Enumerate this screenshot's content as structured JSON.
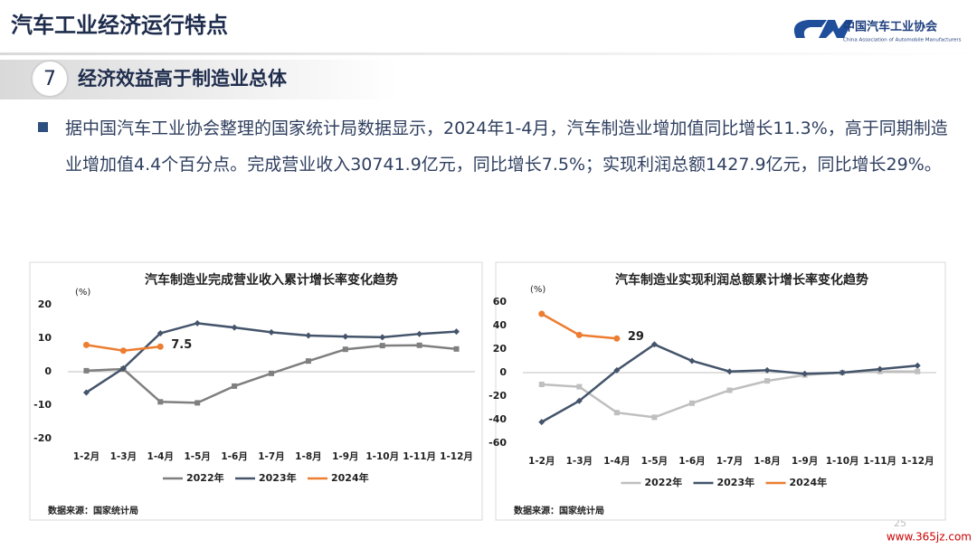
{
  "header": {
    "title": "汽车工业经济运行特点",
    "logo_name": "中国汽车工业协会",
    "logo_subtitle": "China Association of Automobile Manufacturers"
  },
  "section": {
    "number": "7",
    "title": "经济效益高于制造业总体"
  },
  "paragraph": "据中国汽车工业协会整理的国家统计局数据显示，2024年1-4月，汽车制造业增加值同比增长11.3%，高于同期制造业增加值4.4个百分点。完成营业收入30741.9亿元，同比增长7.5%；实现利润总额1427.9亿元，同比增长29%。",
  "chart_data": [
    {
      "type": "line",
      "title": "汽车制造业完成营业收入累计增长率变化趋势",
      "y_unit": "(%)",
      "source": "数据来源：国家统计局",
      "categories": [
        "1-2月",
        "1-3月",
        "1-4月",
        "1-5月",
        "1-6月",
        "1-7月",
        "1-8月",
        "1-9月",
        "1-10月",
        "1-11月",
        "1-12月"
      ],
      "ylim": [
        -20,
        20
      ],
      "yticks": [
        -20,
        -10,
        0,
        10,
        20
      ],
      "legend": "bottom",
      "series": [
        {
          "name": "2022年",
          "color": "#7f7f7f",
          "values": [
            0.3,
            0.8,
            -9,
            -9.3,
            -4.3,
            -0.5,
            3.2,
            6.7,
            7.8,
            7.9,
            6.8
          ]
        },
        {
          "name": "2023年",
          "color": "#44546a",
          "values": [
            -6.2,
            1.0,
            11.5,
            14.5,
            13.2,
            11.8,
            10.8,
            10.5,
            10.3,
            11.3,
            12.0
          ]
        },
        {
          "name": "2024年",
          "color": "#ed7d31",
          "values": [
            8.0,
            6.3,
            7.5,
            null,
            null,
            null,
            null,
            null,
            null,
            null,
            null
          ],
          "value_labels": [
            null,
            null,
            "7.5",
            null,
            null,
            null,
            null,
            null,
            null,
            null,
            null
          ]
        }
      ]
    },
    {
      "type": "line",
      "title": "汽车制造业实现利润总额累计增长率变化趋势",
      "y_unit": "(%)",
      "source": "数据来源：国家统计局",
      "categories": [
        "1-2月",
        "1-3月",
        "1-4月",
        "1-5月",
        "1-6月",
        "1-7月",
        "1-8月",
        "1-9月",
        "1-10月",
        "1-11月",
        "1-12月"
      ],
      "ylim": [
        -60,
        60
      ],
      "yticks": [
        -60,
        -40,
        -20,
        0,
        20,
        40,
        60
      ],
      "legend": "bottom",
      "series": [
        {
          "name": "2022年",
          "color": "#bfbfbf",
          "values": [
            -10,
            -12,
            -34,
            -38,
            -26,
            -15,
            -7,
            -2,
            0,
            1,
            1
          ]
        },
        {
          "name": "2023年",
          "color": "#44546a",
          "values": [
            -42,
            -24,
            2,
            24,
            10,
            1,
            2,
            -1,
            0,
            3,
            6
          ]
        },
        {
          "name": "2024年",
          "color": "#ed7d31",
          "values": [
            50,
            32,
            29,
            null,
            null,
            null,
            null,
            null,
            null,
            null,
            null
          ],
          "value_labels": [
            null,
            null,
            "29",
            null,
            null,
            null,
            null,
            null,
            null,
            null,
            null
          ]
        }
      ]
    }
  ],
  "page_number": "25",
  "watermark": "www.365jz.com"
}
